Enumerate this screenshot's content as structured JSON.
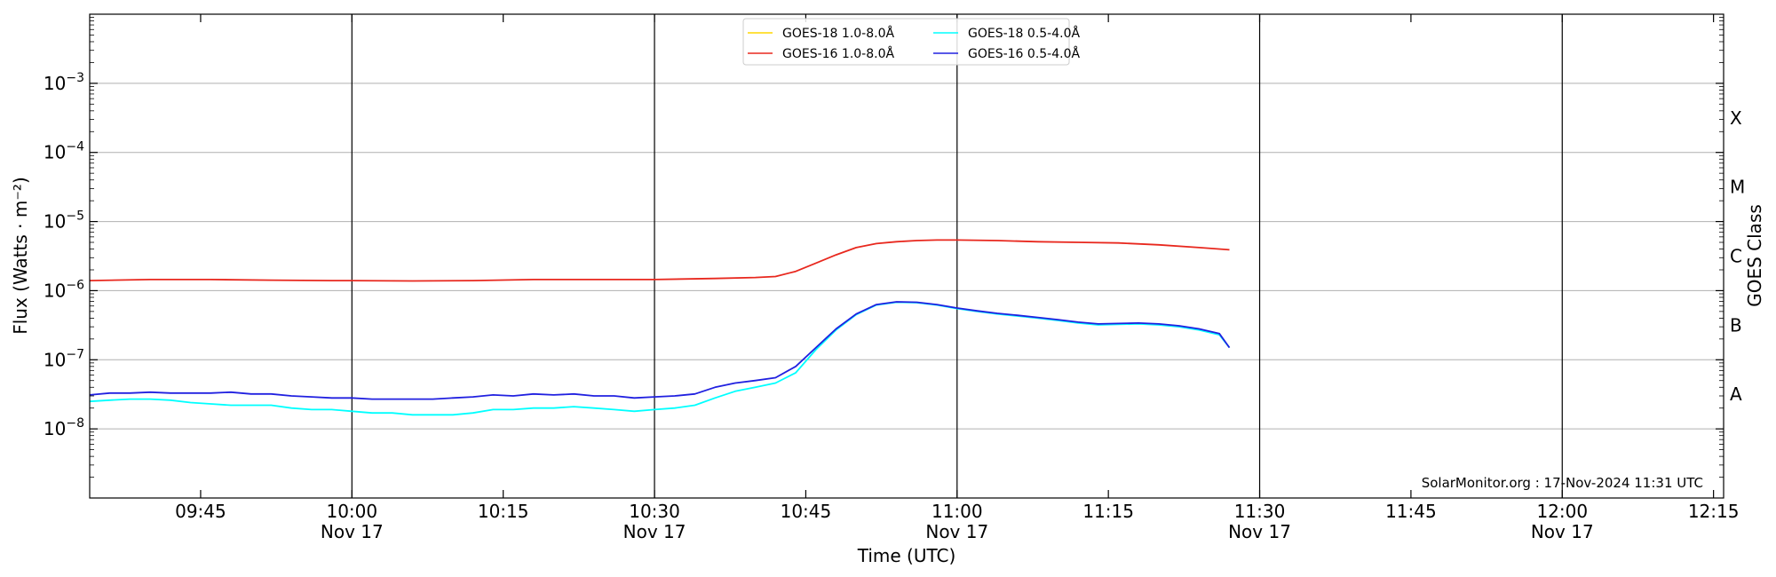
{
  "chart_data": {
    "type": "line",
    "xlabel": "Time (UTC)",
    "ylabel": "Flux (Watts · m⁻²)",
    "y2label": "GOES Class",
    "y_scale": "log",
    "ylim": [
      1e-09,
      0.01
    ],
    "xlim": [
      "09:34",
      "12:16"
    ],
    "grid": "horizontal at decades",
    "x_ticks": [
      {
        "time": "09:45",
        "label": "09:45",
        "sub": ""
      },
      {
        "time": "10:00",
        "label": "10:00",
        "sub": "Nov 17"
      },
      {
        "time": "10:15",
        "label": "10:15",
        "sub": ""
      },
      {
        "time": "10:30",
        "label": "10:30",
        "sub": "Nov 17"
      },
      {
        "time": "10:45",
        "label": "10:45",
        "sub": ""
      },
      {
        "time": "11:00",
        "label": "11:00",
        "sub": "Nov 17"
      },
      {
        "time": "11:15",
        "label": "11:15",
        "sub": ""
      },
      {
        "time": "11:30",
        "label": "11:30",
        "sub": "Nov 17"
      },
      {
        "time": "11:45",
        "label": "11:45",
        "sub": ""
      },
      {
        "time": "12:00",
        "label": "12:00",
        "sub": "Nov 17"
      },
      {
        "time": "12:15",
        "label": "12:15",
        "sub": ""
      }
    ],
    "vlines": [
      "10:00",
      "10:30",
      "11:00",
      "11:30",
      "12:00"
    ],
    "y_ticks": [
      {
        "value": 1e-08,
        "base": "10",
        "exp": "−8"
      },
      {
        "value": 1e-07,
        "base": "10",
        "exp": "−7"
      },
      {
        "value": 1e-06,
        "base": "10",
        "exp": "−6"
      },
      {
        "value": 1e-05,
        "base": "10",
        "exp": "−5"
      },
      {
        "value": 0.0001,
        "base": "10",
        "exp": "−4"
      },
      {
        "value": 0.001,
        "base": "10",
        "exp": "−3"
      }
    ],
    "goes_classes": [
      {
        "label": "A",
        "value": 3.16e-08
      },
      {
        "label": "B",
        "value": 3.16e-07
      },
      {
        "label": "C",
        "value": 3.16e-06
      },
      {
        "label": "M",
        "value": 3.16e-05
      },
      {
        "label": "X",
        "value": 0.000316
      }
    ],
    "legend_position": "top-center",
    "series": [
      {
        "name": "GOES-18 1.0-8.0Å",
        "color": "#ffd700",
        "x": [],
        "y": []
      },
      {
        "name": "GOES-18 0.5-4.0Å",
        "color": "#00ffff",
        "x": [
          "09:34",
          "09:36",
          "09:38",
          "09:40",
          "09:42",
          "09:44",
          "09:46",
          "09:48",
          "09:50",
          "09:52",
          "09:54",
          "09:56",
          "09:58",
          "10:00",
          "10:02",
          "10:04",
          "10:06",
          "10:08",
          "10:10",
          "10:12",
          "10:14",
          "10:16",
          "10:18",
          "10:20",
          "10:22",
          "10:24",
          "10:26",
          "10:28",
          "10:30",
          "10:32",
          "10:34",
          "10:36",
          "10:38",
          "10:40",
          "10:42",
          "10:44",
          "10:46",
          "10:48",
          "10:50",
          "10:52",
          "10:54",
          "10:56",
          "10:58",
          "11:00",
          "11:02",
          "11:04",
          "11:06",
          "11:08",
          "11:10",
          "11:12",
          "11:14",
          "11:16",
          "11:18",
          "11:20",
          "11:22",
          "11:24",
          "11:26",
          "11:27"
        ],
        "y": [
          2.5e-08,
          2.6e-08,
          2.7e-08,
          2.7e-08,
          2.6e-08,
          2.4e-08,
          2.3e-08,
          2.2e-08,
          2.2e-08,
          2.2e-08,
          2e-08,
          1.9e-08,
          1.9e-08,
          1.8e-08,
          1.7e-08,
          1.7e-08,
          1.6e-08,
          1.6e-08,
          1.6e-08,
          1.7e-08,
          1.9e-08,
          1.9e-08,
          2e-08,
          2e-08,
          2.1e-08,
          2e-08,
          1.9e-08,
          1.8e-08,
          1.9e-08,
          2e-08,
          2.2e-08,
          2.8e-08,
          3.5e-08,
          4e-08,
          4.6e-08,
          6.5e-08,
          1.4e-07,
          2.7e-07,
          4.5e-07,
          6.2e-07,
          6.8e-07,
          6.7e-07,
          6.2e-07,
          5.5e-07,
          5e-07,
          4.6e-07,
          4.3e-07,
          4e-07,
          3.7e-07,
          3.4e-07,
          3.2e-07,
          3.25e-07,
          3.3e-07,
          3.2e-07,
          3e-07,
          2.7e-07,
          2.3e-07,
          1.5e-07
        ]
      },
      {
        "name": "GOES-16 1.0-8.0Å",
        "color": "#e8281e",
        "x": [
          "09:34",
          "09:40",
          "09:46",
          "09:52",
          "09:58",
          "10:00",
          "10:06",
          "10:12",
          "10:18",
          "10:24",
          "10:30",
          "10:36",
          "10:40",
          "10:42",
          "10:44",
          "10:46",
          "10:48",
          "10:50",
          "10:52",
          "10:54",
          "10:56",
          "10:58",
          "11:00",
          "11:04",
          "11:08",
          "11:12",
          "11:16",
          "11:20",
          "11:24",
          "11:27"
        ],
        "y": [
          1.4e-06,
          1.45e-06,
          1.45e-06,
          1.42e-06,
          1.4e-06,
          1.4e-06,
          1.38e-06,
          1.4e-06,
          1.45e-06,
          1.45e-06,
          1.45e-06,
          1.5e-06,
          1.55e-06,
          1.6e-06,
          1.9e-06,
          2.5e-06,
          3.3e-06,
          4.2e-06,
          4.8e-06,
          5.1e-06,
          5.3e-06,
          5.4e-06,
          5.4e-06,
          5.3e-06,
          5.1e-06,
          5e-06,
          4.9e-06,
          4.6e-06,
          4.2e-06,
          3.9e-06
        ]
      },
      {
        "name": "GOES-16 0.5-4.0Å",
        "color": "#2020e0",
        "x": [
          "09:34",
          "09:36",
          "09:38",
          "09:40",
          "09:42",
          "09:44",
          "09:46",
          "09:48",
          "09:50",
          "09:52",
          "09:54",
          "09:56",
          "09:58",
          "10:00",
          "10:02",
          "10:04",
          "10:06",
          "10:08",
          "10:10",
          "10:12",
          "10:14",
          "10:16",
          "10:18",
          "10:20",
          "10:22",
          "10:24",
          "10:26",
          "10:28",
          "10:30",
          "10:32",
          "10:34",
          "10:36",
          "10:38",
          "10:40",
          "10:42",
          "10:44",
          "10:46",
          "10:48",
          "10:50",
          "10:52",
          "10:54",
          "10:56",
          "10:58",
          "11:00",
          "11:02",
          "11:04",
          "11:06",
          "11:08",
          "11:10",
          "11:12",
          "11:14",
          "11:16",
          "11:18",
          "11:20",
          "11:22",
          "11:24",
          "11:26",
          "11:27"
        ],
        "y": [
          3.1e-08,
          3.3e-08,
          3.3e-08,
          3.4e-08,
          3.3e-08,
          3.3e-08,
          3.3e-08,
          3.4e-08,
          3.2e-08,
          3.2e-08,
          3e-08,
          2.9e-08,
          2.8e-08,
          2.8e-08,
          2.7e-08,
          2.7e-08,
          2.7e-08,
          2.7e-08,
          2.8e-08,
          2.9e-08,
          3.1e-08,
          3e-08,
          3.2e-08,
          3.1e-08,
          3.2e-08,
          3e-08,
          3e-08,
          2.8e-08,
          2.9e-08,
          3e-08,
          3.2e-08,
          4e-08,
          4.6e-08,
          5e-08,
          5.5e-08,
          8e-08,
          1.5e-07,
          2.8e-07,
          4.6e-07,
          6.3e-07,
          6.9e-07,
          6.8e-07,
          6.3e-07,
          5.6e-07,
          5.1e-07,
          4.7e-07,
          4.4e-07,
          4.1e-07,
          3.8e-07,
          3.5e-07,
          3.3e-07,
          3.35e-07,
          3.4e-07,
          3.3e-07,
          3.1e-07,
          2.8e-07,
          2.4e-07,
          1.5e-07
        ]
      }
    ],
    "credit": "SolarMonitor.org : 17-Nov-2024 11:31 UTC"
  },
  "colors": {
    "grid": "#b0b0b0",
    "vline": "#000000",
    "frame": "#000000"
  }
}
